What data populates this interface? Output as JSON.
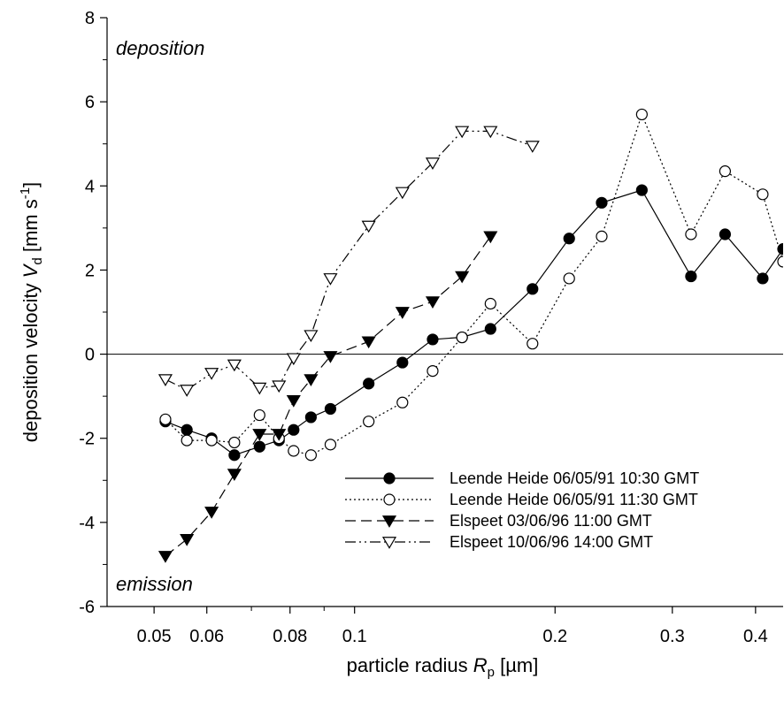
{
  "chart_data": {
    "type": "scatter",
    "xlabel": "particle radius R_p [µm]",
    "xlabel_parts": {
      "pre": "particle radius ",
      "sym": "R",
      "sub": "p",
      "post": " [µm]"
    },
    "ylabel": "deposition velocity V_d [mm s^-1]",
    "ylabel_parts": {
      "pre": "deposition velocity ",
      "sym": "V",
      "sub": "d",
      "mid": " [mm s",
      "sup": "-1",
      "post": "]"
    },
    "x_scale": "log",
    "xlim": [
      0.0425,
      0.44
    ],
    "ylim": [
      -6,
      8
    ],
    "x_ticks": [
      0.05,
      0.06,
      0.08,
      0.1,
      0.2,
      0.3,
      0.4
    ],
    "x_tick_labels": [
      "0.05",
      "0.06",
      "0.08",
      "0.1",
      "0.2",
      "0.3",
      "0.4"
    ],
    "y_ticks": [
      -6,
      -4,
      -2,
      0,
      2,
      4,
      6,
      8
    ],
    "y_tick_labels": [
      "-6",
      "-4",
      "-2",
      "0",
      "2",
      "4",
      "6",
      "8"
    ],
    "reference_line_y": 0,
    "grid": false,
    "legend_position": "bottom-right",
    "annotations": [
      {
        "text": "deposition",
        "position": "top-left"
      },
      {
        "text": "emission",
        "position": "bottom-left"
      }
    ],
    "series": [
      {
        "name": "Leende Heide 06/05/91 10:30 GMT",
        "marker": "circle-filled",
        "line": "solid",
        "color": "#000000",
        "x": [
          0.052,
          0.056,
          0.061,
          0.066,
          0.072,
          0.077,
          0.081,
          0.086,
          0.092,
          0.105,
          0.118,
          0.131,
          0.145,
          0.16,
          0.185,
          0.21,
          0.235,
          0.27,
          0.32,
          0.36,
          0.41,
          0.44
        ],
        "y": [
          -1.6,
          -1.8,
          -2.0,
          -2.4,
          -2.2,
          -2.05,
          -1.8,
          -1.5,
          -1.3,
          -0.7,
          -0.2,
          0.35,
          0.4,
          0.6,
          1.55,
          2.75,
          3.6,
          3.9,
          1.85,
          2.85,
          1.8,
          2.5
        ]
      },
      {
        "name": "Leende Heide 06/05/91 11:30 GMT",
        "marker": "circle-open",
        "line": "dotted",
        "color": "#000000",
        "x": [
          0.052,
          0.056,
          0.061,
          0.066,
          0.072,
          0.077,
          0.081,
          0.086,
          0.092,
          0.105,
          0.118,
          0.131,
          0.145,
          0.16,
          0.185,
          0.21,
          0.235,
          0.27,
          0.32,
          0.36,
          0.41,
          0.44
        ],
        "y": [
          -1.55,
          -2.05,
          -2.05,
          -2.1,
          -1.45,
          -2.0,
          -2.3,
          -2.4,
          -2.15,
          -1.6,
          -1.15,
          -0.4,
          0.4,
          1.2,
          0.25,
          1.8,
          2.8,
          5.7,
          2.85,
          4.35,
          3.8,
          2.2
        ]
      },
      {
        "name": "Elspeet 03/06/96 11:00 GMT",
        "marker": "triangle-down-filled",
        "line": "dashed",
        "color": "#000000",
        "x": [
          0.052,
          0.056,
          0.061,
          0.066,
          0.072,
          0.077,
          0.081,
          0.086,
          0.092,
          0.105,
          0.118,
          0.131,
          0.145,
          0.16
        ],
        "y": [
          -4.8,
          -4.4,
          -3.75,
          -2.85,
          -1.9,
          -1.9,
          -1.1,
          -0.6,
          -0.05,
          0.3,
          1.0,
          1.25,
          1.85,
          2.8
        ]
      },
      {
        "name": "Elspeet 10/06/96 14:00 GMT",
        "marker": "triangle-down-open",
        "line": "dash-dot-dot",
        "color": "#000000",
        "x": [
          0.052,
          0.056,
          0.061,
          0.066,
          0.072,
          0.077,
          0.081,
          0.086,
          0.092,
          0.105,
          0.118,
          0.131,
          0.145,
          0.16,
          0.185
        ],
        "y": [
          -0.6,
          -0.85,
          -0.45,
          -0.25,
          -0.8,
          -0.75,
          -0.1,
          0.45,
          1.8,
          3.05,
          3.85,
          4.55,
          5.3,
          5.3,
          4.95
        ]
      }
    ]
  }
}
